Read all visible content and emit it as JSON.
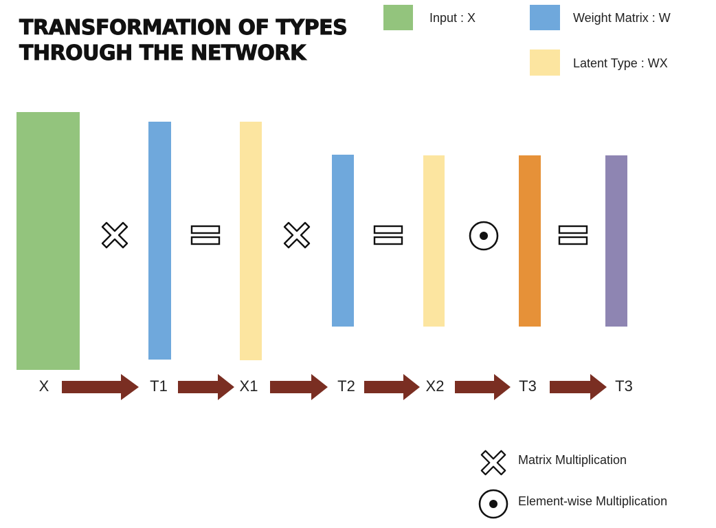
{
  "title": {
    "line1": "TRANSFORMATION OF TYPES",
    "line2": "THROUGH THE NETWORK"
  },
  "legend": [
    {
      "key": "input",
      "label": "Input : X",
      "color": "#93c47d"
    },
    {
      "key": "weight",
      "label": "Weight Matrix : W",
      "color": "#6fa8dc"
    },
    {
      "key": "latent",
      "label": "Latent Type : WX",
      "color": "#fce5a0"
    }
  ],
  "bars": [
    {
      "key": "x",
      "color": "#93c47d"
    },
    {
      "key": "w1",
      "color": "#6fa8dc"
    },
    {
      "key": "x1",
      "color": "#fce5a0"
    },
    {
      "key": "w2",
      "color": "#6fa8dc"
    },
    {
      "key": "x2",
      "color": "#fce5a0"
    },
    {
      "key": "t3-orange",
      "color": "#e69138"
    },
    {
      "key": "t3-purple",
      "color": "#8e85b2"
    }
  ],
  "operators": [
    "matrix-multiply",
    "equals",
    "matrix-multiply",
    "equals",
    "elementwise-multiply",
    "equals"
  ],
  "flow": {
    "labels": [
      "X",
      "T1",
      "X1",
      "T2",
      "X2",
      "T3",
      "T3"
    ],
    "arrow_color": "#7a2e22"
  },
  "symbol_legend": {
    "matrix": "Matrix Multiplication",
    "elementwise": "Element-wise Multiplication"
  }
}
